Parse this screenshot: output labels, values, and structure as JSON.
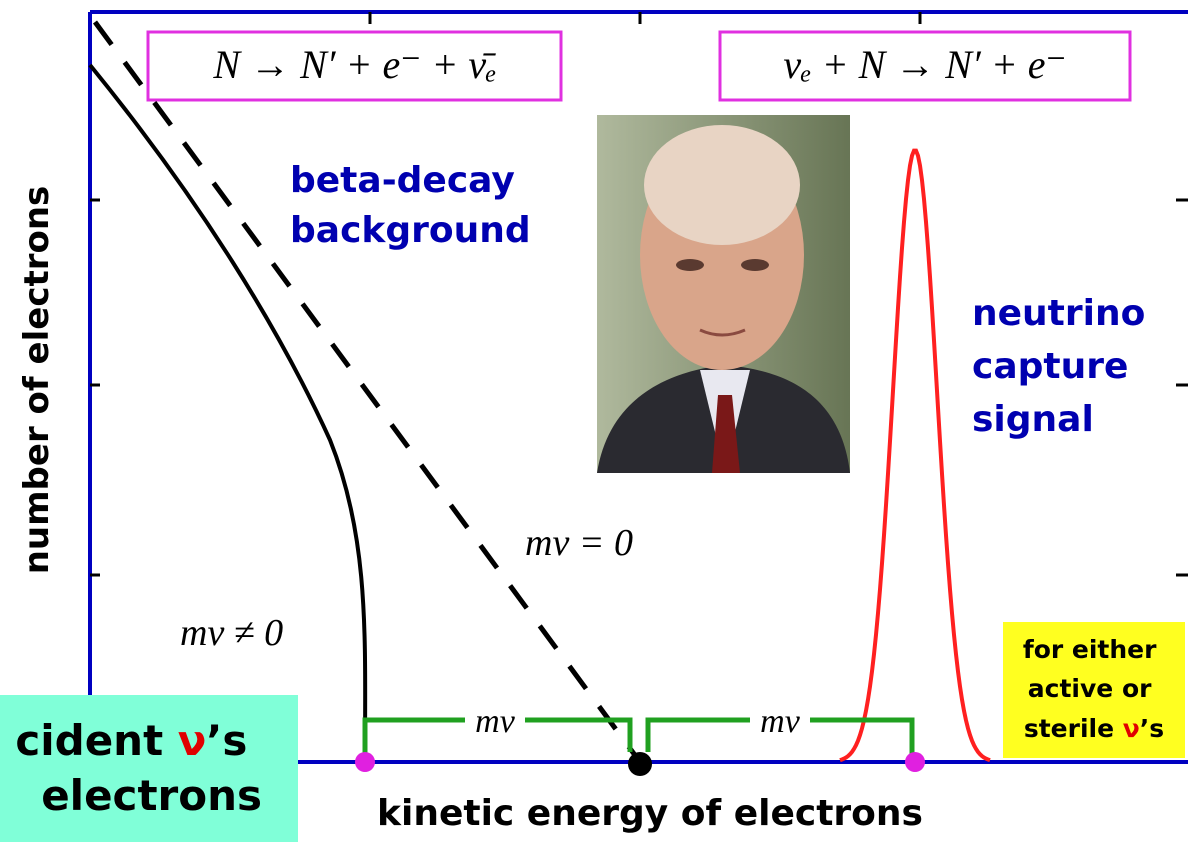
{
  "diagram": {
    "decay_formula": "N → N′ + e⁻ + ν̄ₑ",
    "capture_formula": "νₑ + N → N′ + e⁻",
    "background_label": [
      "beta-decay",
      "background"
    ],
    "signal_label": [
      "neutrino",
      "capture",
      "signal"
    ],
    "massless_label": "mν = 0",
    "massive_label": "mν ≠ 0",
    "gap_labels": [
      "mν",
      "mν"
    ],
    "y_axis_label": "number of electrons",
    "x_axis_label": "kinetic energy of electrons",
    "note": [
      "for either",
      "active  or",
      [
        "sterile ",
        "ν",
        "’s"
      ]
    ],
    "side_box": [
      [
        "cident ",
        "ν",
        "’s"
      ],
      "electrons"
    ]
  }
}
